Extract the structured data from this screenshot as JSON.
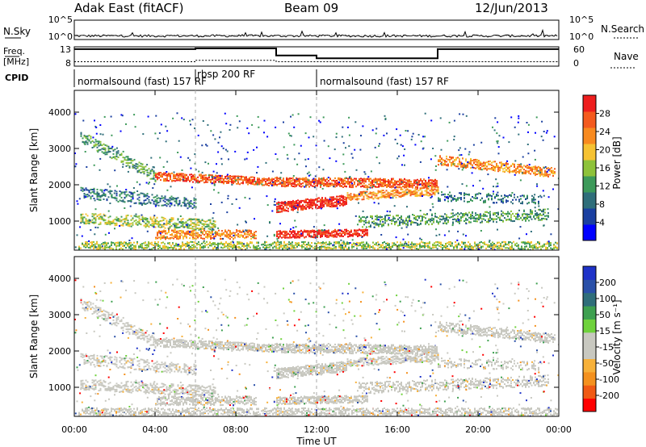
{
  "header": {
    "site": "Adak East (fitACF)",
    "beam": "Beam 09",
    "date": "12/Jun/2013"
  },
  "top_panel": {
    "left_label": "N.Sky",
    "right_label": "N.Search",
    "left_ticks": [
      "10^5",
      "10^0"
    ],
    "right_ticks": [
      "10^5",
      "10^0"
    ]
  },
  "freq_panel": {
    "left_label_1": "Freq.",
    "left_label_2": "[MHz]",
    "left_ticks": [
      "13",
      "8"
    ],
    "right_ticks": [
      "60",
      "0"
    ],
    "right_label": "Nave",
    "freq_steps": [
      {
        "from": 0,
        "to": 6,
        "value": 12.8
      },
      {
        "from": 6,
        "to": 10,
        "value": 13.0
      },
      {
        "from": 10,
        "to": 12,
        "value": 11.0
      },
      {
        "from": 12,
        "to": 18,
        "value": 10.2
      },
      {
        "from": 18,
        "to": 24,
        "value": 12.8
      }
    ],
    "nave_steps": [
      {
        "from": 0,
        "to": 6,
        "value": 15
      },
      {
        "from": 6,
        "to": 10,
        "value": 20
      },
      {
        "from": 10,
        "to": 12,
        "value": 15
      },
      {
        "from": 12,
        "to": 18,
        "value": 15
      },
      {
        "from": 18,
        "to": 24,
        "value": 15
      }
    ]
  },
  "cpid": {
    "label": "CPID",
    "segments": [
      {
        "start": 0,
        "label": "normalsound (fast) 157 RF"
      },
      {
        "start": 6,
        "label": "rbsp 200 RF"
      },
      {
        "start": 12,
        "label": "normalsound (fast) 157 RF"
      }
    ]
  },
  "chart_data": [
    {
      "type": "heatmap",
      "name": "power",
      "ylabel": "Slant Range [km]",
      "yticks": [
        1000,
        2000,
        3000,
        4000
      ],
      "ylim": [
        200,
        4600
      ],
      "xlim": [
        0,
        24
      ],
      "colorbar": {
        "label": "Power [dB]",
        "ticks": [
          "28",
          "24",
          "20",
          "16",
          "12",
          "8",
          "4"
        ],
        "colors": [
          "#0000ff",
          "#1a3fa0",
          "#2f6e7a",
          "#3d9a5a",
          "#8ec23a",
          "#f6c232",
          "#f88a1f",
          "#f45a1e",
          "#ee1e1e"
        ]
      },
      "bands": [
        {
          "t0": 0.3,
          "t1": 4.0,
          "r0": 3350,
          "r1": 2250,
          "w": 300,
          "level": 3,
          "density": 0.35
        },
        {
          "t0": 4.0,
          "t1": 10.0,
          "r0": 2250,
          "r1": 2100,
          "w": 220,
          "level": 7,
          "density": 0.75
        },
        {
          "t0": 10.0,
          "t1": 18.0,
          "r0": 2100,
          "r1": 2050,
          "w": 250,
          "level": 7,
          "density": 0.75
        },
        {
          "t0": 18.0,
          "t1": 23.8,
          "r0": 2700,
          "r1": 2350,
          "w": 260,
          "level": 6,
          "density": 0.55
        },
        {
          "t0": 10.0,
          "t1": 13.5,
          "r0": 1400,
          "r1": 1600,
          "w": 280,
          "level": 8,
          "density": 0.85
        },
        {
          "t0": 13.5,
          "t1": 18.0,
          "r0": 1700,
          "r1": 1850,
          "w": 220,
          "level": 6,
          "density": 0.55
        },
        {
          "t0": 10.0,
          "t1": 14.5,
          "r0": 650,
          "r1": 700,
          "w": 200,
          "level": 8,
          "density": 0.85
        },
        {
          "t0": 0.3,
          "t1": 7.0,
          "r0": 1100,
          "r1": 900,
          "w": 300,
          "level": 4,
          "density": 0.4
        },
        {
          "t0": 4.0,
          "t1": 9.0,
          "r0": 650,
          "r1": 650,
          "w": 250,
          "level": 6,
          "density": 0.5
        },
        {
          "t0": 0.3,
          "t1": 6.0,
          "r0": 1800,
          "r1": 1500,
          "w": 300,
          "level": 2,
          "density": 0.3
        },
        {
          "t0": 14.0,
          "t1": 23.5,
          "r0": 1000,
          "r1": 1200,
          "w": 300,
          "level": 3,
          "density": 0.35
        },
        {
          "t0": 18.0,
          "t1": 23.0,
          "r0": 1700,
          "r1": 1600,
          "w": 250,
          "level": 2,
          "density": 0.3
        },
        {
          "t0": 0.2,
          "t1": 23.9,
          "r0": 350,
          "r1": 350,
          "w": 200,
          "level": 4,
          "density": 0.45
        }
      ]
    },
    {
      "type": "heatmap",
      "name": "velocity",
      "ylabel": "Slant Range [km]",
      "yticks": [
        1000,
        2000,
        3000,
        4000
      ],
      "ylim": [
        200,
        4600
      ],
      "xlim": [
        0,
        24
      ],
      "xlabel": "Time UT",
      "xticks": [
        "00:00",
        "04:00",
        "08:00",
        "12:00",
        "16:00",
        "20:00",
        "00:00"
      ],
      "colorbar": {
        "label": "Velocity [m s⁻¹]",
        "ticks": [
          "200",
          "100",
          "50",
          "15",
          "-15",
          "-50",
          "-100",
          "-200"
        ],
        "colors": [
          "#ff0000",
          "#f05a14",
          "#f4911e",
          "#f7b13a",
          "#c8c8c0",
          "#c8c8c0",
          "#6fd23c",
          "#3ea050",
          "#2f6e7a",
          "#2a50a8",
          "#1e32c8"
        ]
      }
    }
  ]
}
